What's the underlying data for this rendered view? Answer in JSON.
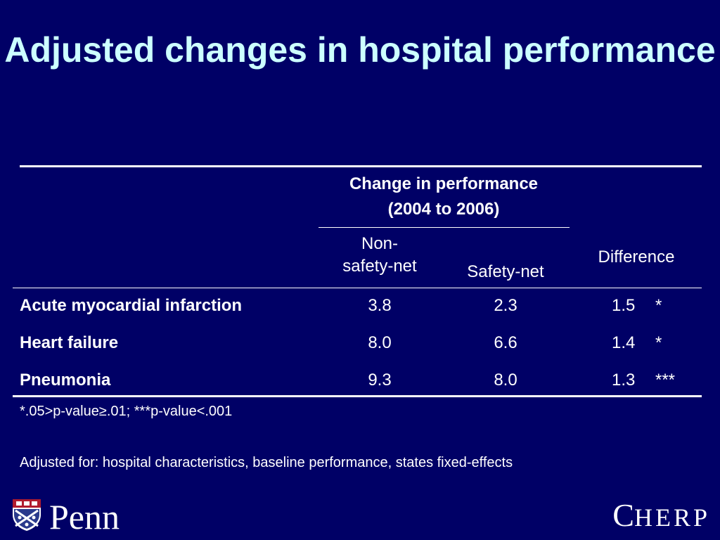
{
  "slide": {
    "title": "Adjusted changes in hospital performance"
  },
  "table": {
    "group_header_line1": "Change in performance",
    "group_header_line2": "(2004 to 2006)",
    "col_nonsafety_line1": "Non-",
    "col_nonsafety_line2": "safety-net",
    "col_safety": "Safety-net",
    "col_difference": "Difference",
    "rows": [
      {
        "label": "Acute myocardial infarction",
        "non_safety": "3.8",
        "safety": "2.3",
        "difference": "1.5",
        "sig": "*"
      },
      {
        "label": "Heart failure",
        "non_safety": "8.0",
        "safety": "6.6",
        "difference": "1.4",
        "sig": "*"
      },
      {
        "label": "Pneumonia",
        "non_safety": "9.3",
        "safety": "8.0",
        "difference": "1.3",
        "sig": "***"
      }
    ]
  },
  "footnotes": {
    "significance": "*.05>p-value≥.01; ***p-value<.001",
    "adjusted": "Adjusted for: hospital characteristics, baseline performance, states fixed-effects"
  },
  "logos": {
    "penn": "Penn",
    "cherp_initial": "C",
    "cherp_rest": "HERP"
  },
  "colors": {
    "background": "#000066",
    "title": "#ccffff",
    "text": "#ffffff"
  }
}
